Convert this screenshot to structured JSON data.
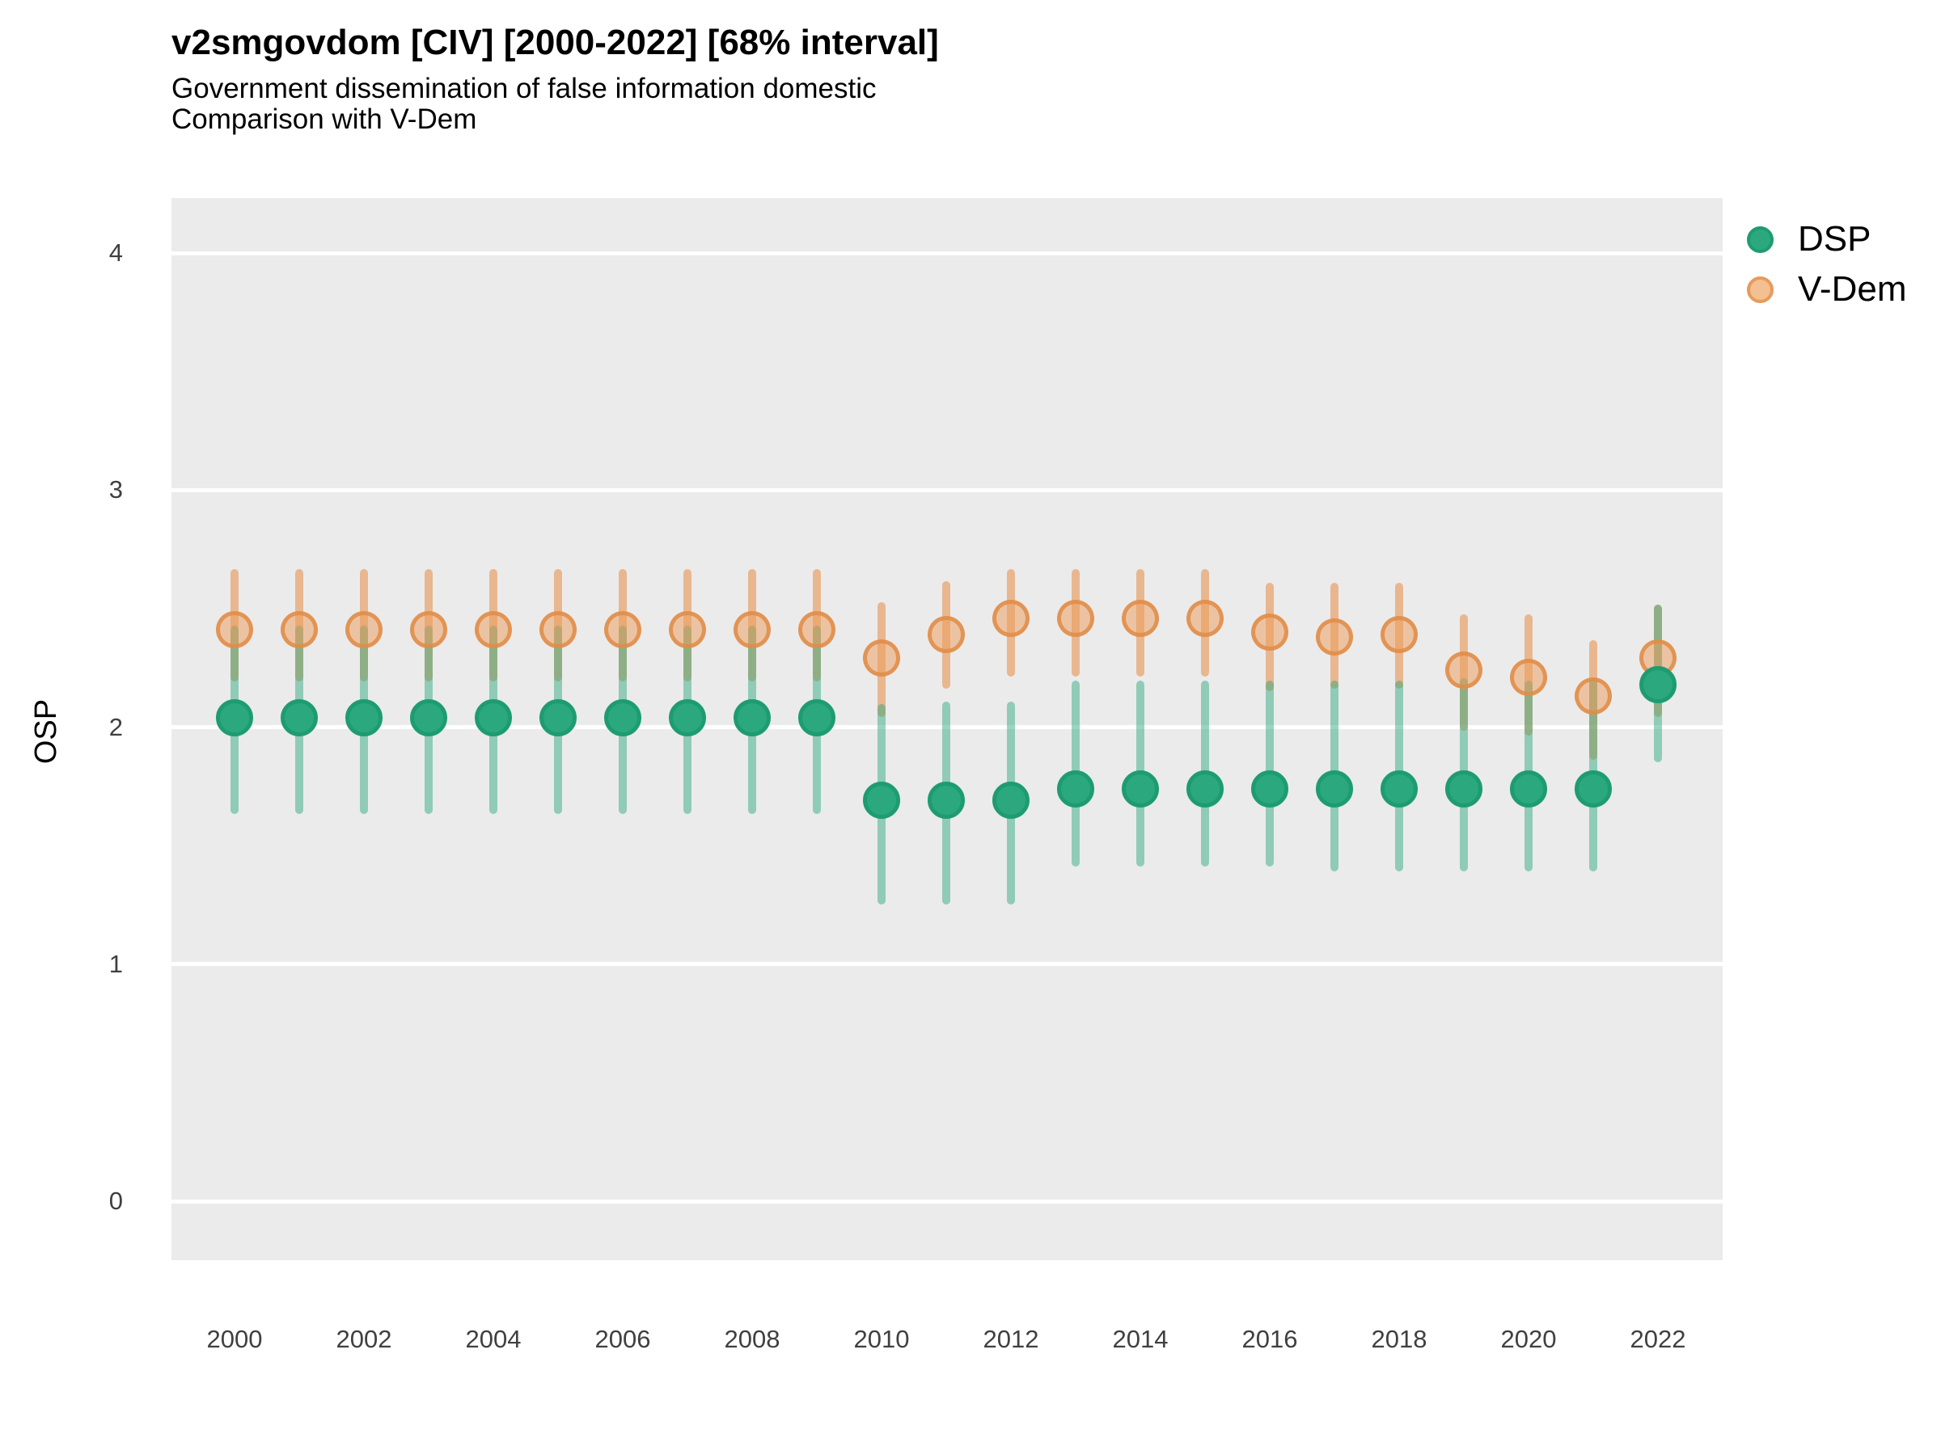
{
  "header": {
    "title": "v2smgovdom [CIV] [2000-2022] [68% interval]",
    "subtitle_line1": "Government dissemination of false information domestic",
    "subtitle_line2": "Comparison with V-Dem"
  },
  "axes": {
    "y_label": "OSP",
    "y_ticks": [
      0,
      1,
      2,
      3,
      4
    ],
    "x_ticks": [
      2000,
      2002,
      2004,
      2006,
      2008,
      2010,
      2012,
      2014,
      2016,
      2018,
      2020,
      2022
    ]
  },
  "legend": {
    "items": [
      {
        "label": "DSP",
        "color": "#2BA87E"
      },
      {
        "label": "V-Dem",
        "color": "#E89050"
      }
    ]
  },
  "chart_data": {
    "type": "scatter",
    "subtype": "pointrange-interval",
    "title": "v2smgovdom [CIV] [2000-2022] [68% interval]",
    "subtitle": "Government dissemination of false information domestic — Comparison with V-Dem",
    "xlabel": "",
    "ylabel": "OSP",
    "ylim": [
      -0.25,
      4.23
    ],
    "xlim": [
      1999,
      2023
    ],
    "grid": "horizontal-major-only",
    "legend_position": "top-right",
    "interval_level": "68%",
    "panel_background": "#EBEBEB",
    "gridline_color": "#FFFFFF",
    "series": [
      {
        "name": "DSP",
        "color": "#2BA87E",
        "interval_color": "rgba(43,168,126,0.48)",
        "points": [
          {
            "year": 2000,
            "y": 2.04,
            "lo": 1.65,
            "hi": 2.41
          },
          {
            "year": 2001,
            "y": 2.04,
            "lo": 1.65,
            "hi": 2.41
          },
          {
            "year": 2002,
            "y": 2.04,
            "lo": 1.65,
            "hi": 2.41
          },
          {
            "year": 2003,
            "y": 2.04,
            "lo": 1.65,
            "hi": 2.41
          },
          {
            "year": 2004,
            "y": 2.04,
            "lo": 1.65,
            "hi": 2.41
          },
          {
            "year": 2005,
            "y": 2.04,
            "lo": 1.65,
            "hi": 2.41
          },
          {
            "year": 2006,
            "y": 2.04,
            "lo": 1.65,
            "hi": 2.41
          },
          {
            "year": 2007,
            "y": 2.04,
            "lo": 1.65,
            "hi": 2.41
          },
          {
            "year": 2008,
            "y": 2.04,
            "lo": 1.65,
            "hi": 2.41
          },
          {
            "year": 2009,
            "y": 2.04,
            "lo": 1.65,
            "hi": 2.41
          },
          {
            "year": 2010,
            "y": 1.69,
            "lo": 1.27,
            "hi": 2.08
          },
          {
            "year": 2011,
            "y": 1.69,
            "lo": 1.27,
            "hi": 2.09
          },
          {
            "year": 2012,
            "y": 1.69,
            "lo": 1.27,
            "hi": 2.09
          },
          {
            "year": 2013,
            "y": 1.74,
            "lo": 1.43,
            "hi": 2.18
          },
          {
            "year": 2014,
            "y": 1.74,
            "lo": 1.43,
            "hi": 2.18
          },
          {
            "year": 2015,
            "y": 1.74,
            "lo": 1.43,
            "hi": 2.18
          },
          {
            "year": 2016,
            "y": 1.74,
            "lo": 1.43,
            "hi": 2.18
          },
          {
            "year": 2017,
            "y": 1.74,
            "lo": 1.41,
            "hi": 2.18
          },
          {
            "year": 2018,
            "y": 1.74,
            "lo": 1.41,
            "hi": 2.18
          },
          {
            "year": 2019,
            "y": 1.74,
            "lo": 1.41,
            "hi": 2.19
          },
          {
            "year": 2020,
            "y": 1.74,
            "lo": 1.41,
            "hi": 2.18
          },
          {
            "year": 2021,
            "y": 1.74,
            "lo": 1.41,
            "hi": 2.19
          },
          {
            "year": 2022,
            "y": 2.18,
            "lo": 1.87,
            "hi": 2.5
          }
        ]
      },
      {
        "name": "V-Dem",
        "color": "#E89050",
        "interval_color": "rgba(230,140,68,0.55)",
        "points": [
          {
            "year": 2000,
            "y": 2.41,
            "lo": 2.21,
            "hi": 2.65
          },
          {
            "year": 2001,
            "y": 2.41,
            "lo": 2.21,
            "hi": 2.65
          },
          {
            "year": 2002,
            "y": 2.41,
            "lo": 2.21,
            "hi": 2.65
          },
          {
            "year": 2003,
            "y": 2.41,
            "lo": 2.21,
            "hi": 2.65
          },
          {
            "year": 2004,
            "y": 2.41,
            "lo": 2.21,
            "hi": 2.65
          },
          {
            "year": 2005,
            "y": 2.41,
            "lo": 2.21,
            "hi": 2.65
          },
          {
            "year": 2006,
            "y": 2.41,
            "lo": 2.21,
            "hi": 2.65
          },
          {
            "year": 2007,
            "y": 2.41,
            "lo": 2.21,
            "hi": 2.65
          },
          {
            "year": 2008,
            "y": 2.41,
            "lo": 2.21,
            "hi": 2.65
          },
          {
            "year": 2009,
            "y": 2.41,
            "lo": 2.21,
            "hi": 2.65
          },
          {
            "year": 2010,
            "y": 2.29,
            "lo": 2.06,
            "hi": 2.51
          },
          {
            "year": 2011,
            "y": 2.39,
            "lo": 2.18,
            "hi": 2.6
          },
          {
            "year": 2012,
            "y": 2.46,
            "lo": 2.23,
            "hi": 2.65
          },
          {
            "year": 2013,
            "y": 2.46,
            "lo": 2.23,
            "hi": 2.65
          },
          {
            "year": 2014,
            "y": 2.46,
            "lo": 2.23,
            "hi": 2.65
          },
          {
            "year": 2015,
            "y": 2.46,
            "lo": 2.23,
            "hi": 2.65
          },
          {
            "year": 2016,
            "y": 2.4,
            "lo": 2.17,
            "hi": 2.59
          },
          {
            "year": 2017,
            "y": 2.38,
            "lo": 2.18,
            "hi": 2.59
          },
          {
            "year": 2018,
            "y": 2.39,
            "lo": 2.18,
            "hi": 2.59
          },
          {
            "year": 2019,
            "y": 2.24,
            "lo": 2.0,
            "hi": 2.46
          },
          {
            "year": 2020,
            "y": 2.21,
            "lo": 1.98,
            "hi": 2.46
          },
          {
            "year": 2021,
            "y": 2.13,
            "lo": 1.88,
            "hi": 2.35
          },
          {
            "year": 2022,
            "y": 2.29,
            "lo": 2.06,
            "hi": 2.5
          }
        ]
      }
    ]
  }
}
